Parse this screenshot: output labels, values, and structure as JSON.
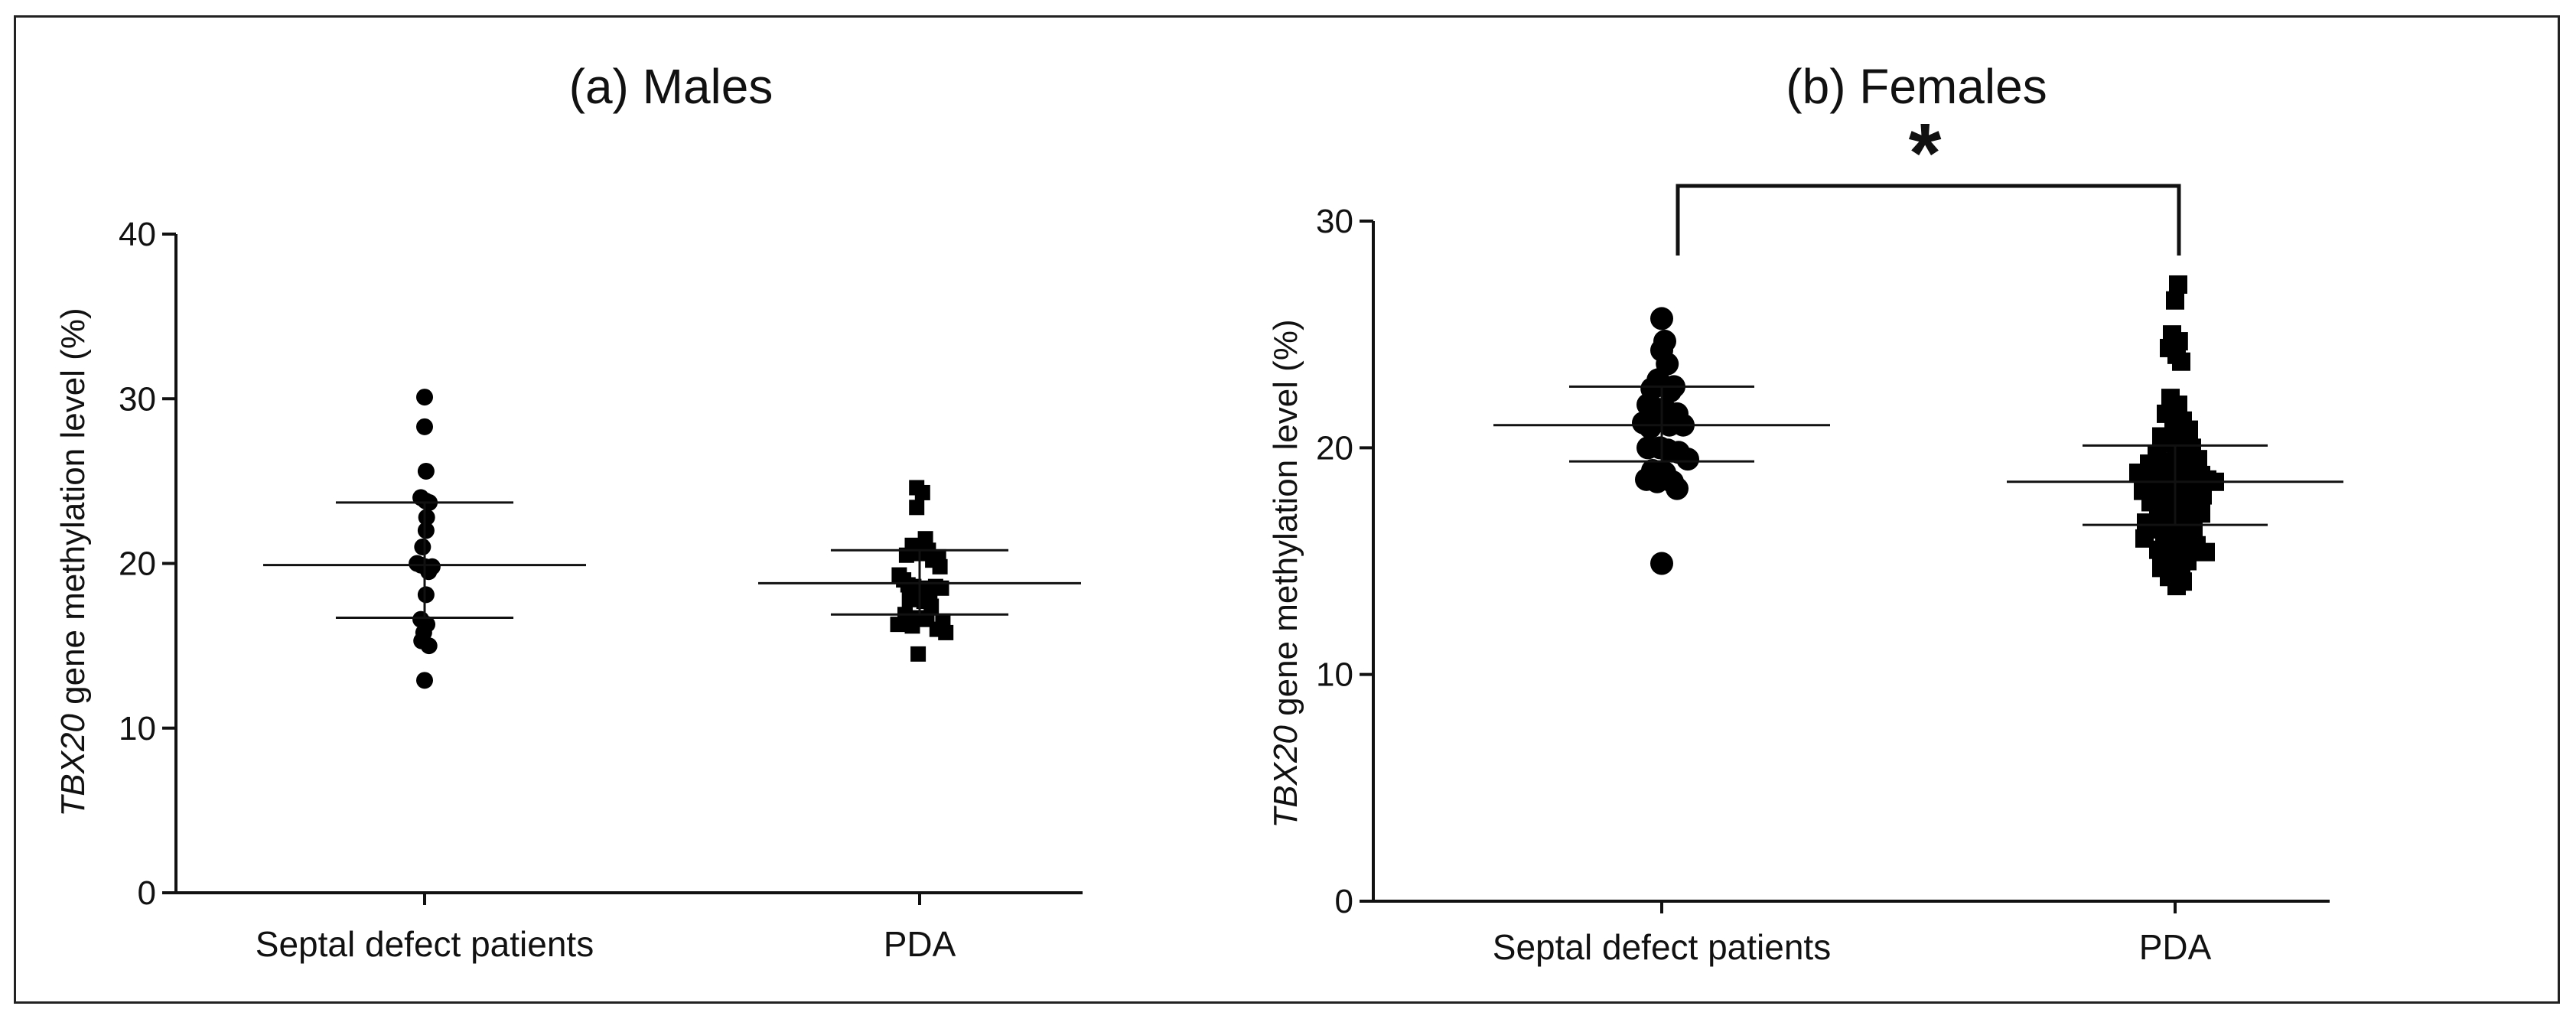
{
  "figure": {
    "colors": {
      "marker": "#000000",
      "axis": "#111111",
      "frame": "#222222"
    }
  },
  "chart_data": [
    {
      "type": "scatter",
      "title": "(a) Males",
      "ylabel_italic": "TBX20",
      "ylabel_rest": " gene methylation level (%)",
      "ylim": [
        0,
        40
      ],
      "yticks": [
        0,
        10,
        20,
        30,
        40
      ],
      "categories": [
        "Septal defect patients",
        "PDA"
      ],
      "series": [
        {
          "name": "Septal defect patients",
          "marker": "circle",
          "values": [
            30.1,
            28.3,
            25.6,
            24.0,
            23.8,
            23.7,
            22.8,
            22.0,
            21.0,
            20.0,
            19.9,
            19.8,
            19.5,
            19.8,
            18.1,
            16.6,
            16.3,
            15.8,
            15.3,
            15.0,
            12.9
          ],
          "jitter": [
            0,
            0,
            0.05,
            -0.13,
            0.03,
            0.16,
            0.07,
            0.05,
            -0.07,
            -0.26,
            -0.13,
            0.02,
            0.14,
            0.26,
            0.05,
            -0.13,
            0.08,
            -0.03,
            -0.1,
            0.15,
            0
          ],
          "mean": 19.9,
          "sd_low": 16.7,
          "sd_high": 23.7
        },
        {
          "name": "PDA",
          "marker": "square",
          "values": [
            24.6,
            24.3,
            23.4,
            21.5,
            21.1,
            20.8,
            20.6,
            20.5,
            20.4,
            20.2,
            19.8,
            19.3,
            19.0,
            18.7,
            18.6,
            18.5,
            18.3,
            18.6,
            18.5,
            17.8,
            17.7,
            17.4,
            16.9,
            16.7,
            16.6,
            16.5,
            16.3,
            16.2,
            16.0,
            15.8,
            14.5
          ],
          "jitter": [
            -0.1,
            0.1,
            -0.1,
            0.2,
            -0.25,
            0.3,
            0.0,
            -0.45,
            0.65,
            0.45,
            0.7,
            -0.7,
            -0.55,
            -0.4,
            -0.2,
            0.05,
            0.35,
            0.55,
            0.75,
            -0.35,
            0.15,
            0.4,
            -0.5,
            -0.05,
            0.25,
            0.8,
            -0.75,
            -0.25,
            0.6,
            0.9,
            -0.05
          ],
          "mean": 18.8,
          "sd_low": 16.9,
          "sd_high": 20.8
        }
      ]
    },
    {
      "type": "scatter",
      "title": "(b) Females",
      "ylabel_italic": "TBX20",
      "ylabel_rest": " gene methylation level (%)",
      "ylim": [
        0,
        30
      ],
      "yticks": [
        0,
        10,
        20,
        30
      ],
      "categories": [
        "Septal defect patients",
        "PDA"
      ],
      "annotation": {
        "text": "*",
        "between": [
          "Septal defect patients",
          "PDA"
        ]
      },
      "series": [
        {
          "name": "Septal defect patients",
          "marker": "circle",
          "values": [
            25.7,
            24.7,
            24.3,
            23.7,
            23.0,
            22.7,
            22.6,
            22.5,
            21.9,
            21.7,
            21.7,
            21.5,
            21.1,
            21.0,
            21.0,
            20.9,
            20.0,
            20.0,
            19.9,
            19.8,
            19.5,
            19.0,
            18.9,
            18.6,
            18.5,
            18.5,
            18.2,
            14.9
          ],
          "jitter": [
            0,
            0.1,
            0.0,
            0.18,
            -0.12,
            0.4,
            -0.32,
            0.28,
            -0.45,
            -0.12,
            0.1,
            0.5,
            -0.6,
            0.25,
            0.7,
            -0.38,
            -0.05,
            -0.45,
            0.2,
            0.55,
            0.85,
            -0.3,
            0.1,
            -0.5,
            0.35,
            -0.15,
            0.5,
            0
          ],
          "mean": 21.0,
          "sd_low": 19.4,
          "sd_high": 22.7
        },
        {
          "name": "PDA",
          "marker": "square",
          "values": [
            27.2,
            26.5,
            25.0,
            24.7,
            24.4,
            24.1,
            23.8,
            22.2,
            21.9,
            21.5,
            21.2,
            21.0,
            20.8,
            20.5,
            20.3,
            20.2,
            20.0,
            19.8,
            19.7,
            19.6,
            19.5,
            19.4,
            19.3,
            19.1,
            19.0,
            18.9,
            18.8,
            18.8,
            18.7,
            18.6,
            18.6,
            18.5,
            18.5,
            18.4,
            18.4,
            18.3,
            18.2,
            18.1,
            18.0,
            17.9,
            17.8,
            17.6,
            17.5,
            17.4,
            17.3,
            17.1,
            17.0,
            16.8,
            16.7,
            16.6,
            16.5,
            16.4,
            16.4,
            16.2,
            16.0,
            15.9,
            15.7,
            15.6,
            15.5,
            15.4,
            15.3,
            15.2,
            15.0,
            14.8,
            14.7,
            14.5,
            14.4,
            14.3,
            14.1,
            13.9
          ],
          "jitter": [
            0.1,
            0,
            -0.1,
            0.12,
            -0.2,
            0.05,
            0.2,
            -0.15,
            0.1,
            -0.3,
            0.25,
            -0.05,
            0.45,
            -0.45,
            0.2,
            -0.2,
            0.55,
            0.05,
            -0.6,
            0.35,
            0.75,
            -0.3,
            -0.85,
            0.5,
            0.15,
            -1.2,
            -0.1,
            0.85,
            -0.5,
            1.05,
            -0.95,
            0.3,
            1.3,
            -0.3,
            0.65,
            -0.7,
            0.0,
            -1.05,
            0.4,
            0.9,
            -0.4,
            -0.8,
            0.15,
            0.55,
            -0.25,
            0.85,
            -0.55,
            0.3,
            -0.95,
            -0.15,
            0.6,
            -0.65,
            0.1,
            0.45,
            -1.0,
            -0.35,
            0.7,
            0.2,
            -0.55,
            1.0,
            0.0,
            -0.3,
            0.4,
            -0.15,
            -0.45,
            0.2,
            0.05,
            -0.2,
            0.25,
            0.05
          ],
          "mean": 18.5,
          "sd_low": 16.6,
          "sd_high": 20.1
        }
      ]
    }
  ]
}
